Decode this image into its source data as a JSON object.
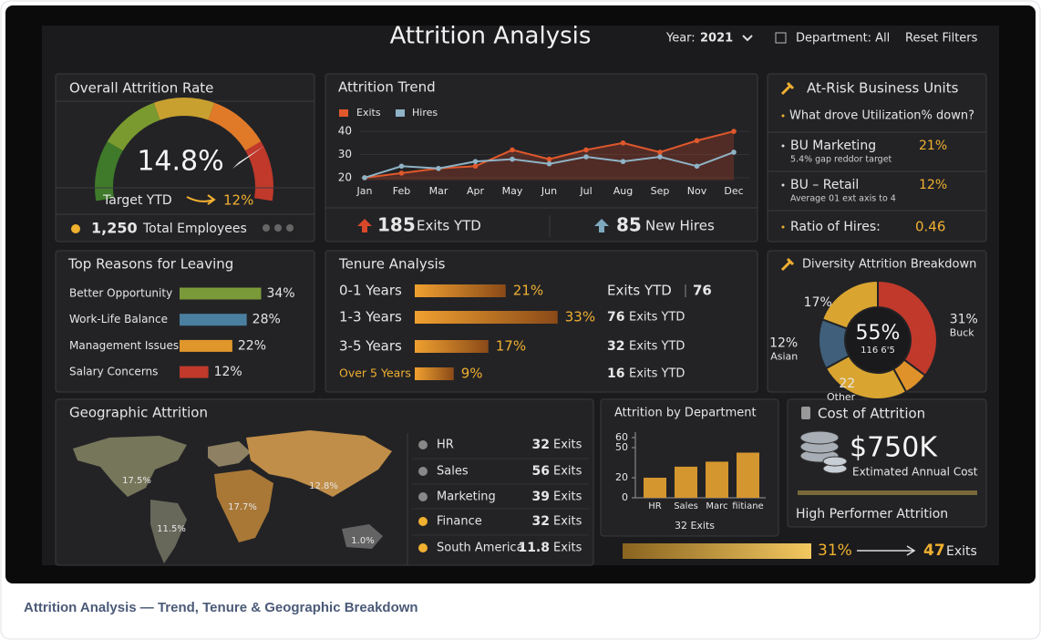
{
  "header": {
    "title": "Attrition Analysis",
    "year_label": "Year:",
    "year": "2021",
    "department": "Department: All",
    "reset": "Reset Filters"
  },
  "overall": {
    "title": "Overall Attrition Rate",
    "rate": "14.8%",
    "target_label": "Target YTD",
    "target": "12%",
    "employees": "1,250",
    "employees_label": "Total Employees"
  },
  "trend": {
    "type": "line",
    "title": "Attrition Trend",
    "categories": [
      "Jan",
      "Feb",
      "Mar",
      "Apr",
      "May",
      "Jun",
      "Jul",
      "Aug",
      "Sep",
      "Nov",
      "Dec"
    ],
    "series": [
      {
        "name": "Exits",
        "color": "#e0582b",
        "values": [
          20,
          22,
          24,
          25,
          32,
          28,
          32,
          35,
          31,
          36,
          40
        ]
      },
      {
        "name": "Hires",
        "color": "#8fb3c6",
        "values": [
          20,
          25,
          24,
          27,
          28,
          26,
          29,
          27,
          29,
          25,
          31
        ]
      }
    ],
    "ylim": [
      19,
      42
    ],
    "yticks": [
      20,
      30,
      40
    ],
    "exits": "185",
    "exits_label": "Exits YTD",
    "hires": "85",
    "hires_label": "New Hires"
  },
  "at_risk": {
    "title": "At-Risk Business Units",
    "question": "What drove Utilization% down?",
    "units": [
      {
        "name": "BU Marketing",
        "value": "21%",
        "note": "5.4% gap reddor target"
      },
      {
        "name": "BU – Retail",
        "value": "12%",
        "note": "Average 01 ext axis to 4"
      }
    ],
    "ratio_label": "Ratio of Hires:",
    "ratio": "0.46"
  },
  "reasons": {
    "type": "bar",
    "title": "Top Reasons for Leaving",
    "categories": [
      "Better Opportunity",
      "Work-Life Balance",
      "Management Issues",
      "Salary Concerns"
    ],
    "values": [
      34,
      28,
      22,
      12
    ],
    "value_labels": [
      "34%",
      "28%",
      "22%",
      "12%"
    ],
    "colors": [
      "#7a9a3a",
      "#4a7fa0",
      "#e0962a",
      "#c0392b"
    ],
    "xlim": [
      0,
      38
    ]
  },
  "tenure": {
    "type": "bar",
    "title": "Tenure Analysis",
    "categories": [
      "0-1 Years",
      "1-3 Years",
      "3-5 Years",
      "Over 5 Years"
    ],
    "values": [
      21,
      33,
      17,
      9
    ],
    "value_labels": [
      "21%",
      "33%",
      "17%",
      "9%"
    ],
    "color": "#e0962a",
    "xlim": [
      0,
      40
    ],
    "exits": [
      {
        "label": "Exits YTD",
        "count": "76"
      },
      {
        "count": "76",
        "label": "Exits YTD"
      },
      {
        "count": "32",
        "label": "Exits YTD"
      },
      {
        "count": "16",
        "label": "Exits YTD"
      }
    ]
  },
  "diversity": {
    "type": "pie",
    "title": "Diversity Attrition Breakdown",
    "categories": [
      "Buck",
      null,
      "Other",
      "Asian",
      null
    ],
    "values": [
      31,
      6,
      22,
      12,
      17
    ],
    "value_labels": [
      "31%",
      null,
      "22",
      "12%",
      "17%"
    ],
    "colors": [
      "#c0392b",
      "#e0922a",
      "#d9a530",
      "#3f5f7a",
      "#d9a530"
    ],
    "center_value": "55%",
    "center_note": "116 6'5"
  },
  "geo": {
    "title": "Geographic Attrition",
    "map_labels": [
      "17.5%",
      "12.8%",
      "17.7%",
      "11.5%",
      "1.0%"
    ],
    "rows": [
      {
        "name": "HR",
        "count": "32",
        "unit": "Exits"
      },
      {
        "name": "Sales",
        "count": "56",
        "unit": "Exits"
      },
      {
        "name": "Marketing",
        "count": "39",
        "unit": "Exits"
      },
      {
        "name": "Finance",
        "count": "32",
        "unit": "Exits"
      },
      {
        "name": "South America",
        "count": "11.8",
        "unit": "Exits"
      }
    ]
  },
  "department": {
    "type": "bar",
    "title": "Attrition by Department",
    "categories": [
      "HR",
      "Sales",
      "Marc",
      "fiitiane"
    ],
    "values": [
      20,
      31,
      36,
      45
    ],
    "ylim": [
      0,
      60
    ],
    "yticks": [
      0,
      20,
      50,
      60
    ],
    "color": "#d4962e",
    "footer": "32 Exits"
  },
  "cost": {
    "title": "Cost of Attrition",
    "amount": "$750K",
    "amount_label": "Extimated Annual Cost",
    "high_performer": "High Performer Attrition",
    "rate": "31%",
    "exits": "47",
    "exits_label": "Exits"
  },
  "caption": "Attrition Analysis — Trend, Tenure & Geographic Breakdown"
}
